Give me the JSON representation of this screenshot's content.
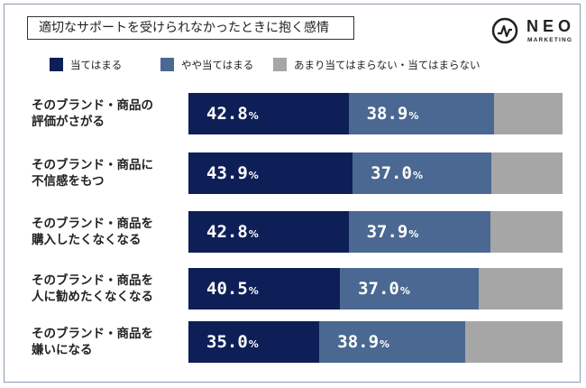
{
  "header": {
    "title": "適切なサポートを受けられなかったときに抱く感情"
  },
  "logo": {
    "wordmark": "NEO",
    "subtext": "MARKETING",
    "icon": "pulse-circle-icon"
  },
  "colors": {
    "series": [
      "#0e1f57",
      "#4a6891",
      "#a6a6a6"
    ]
  },
  "chart_data": {
    "type": "bar",
    "orientation": "horizontal",
    "stacked": true,
    "percent_stacked": true,
    "title": "適切なサポートを受けられなかったときに抱く感情",
    "legend_position": "top",
    "categories": [
      [
        "そのブランド・商品の",
        "評価がさがる"
      ],
      [
        "そのブランド・商品に",
        "不信感をもつ"
      ],
      [
        "そのブランド・商品を",
        "購入したくなくなる"
      ],
      [
        "そのブランド・商品を",
        "人に勧めたくなくなる"
      ],
      [
        "そのブランド・商品を",
        "嫌いになる"
      ]
    ],
    "series": [
      {
        "name": "当てはまる",
        "values": [
          42.8,
          43.9,
          42.8,
          40.5,
          35.0
        ]
      },
      {
        "name": "やや当てはまる",
        "values": [
          38.9,
          37.0,
          37.9,
          37.0,
          38.9
        ]
      },
      {
        "name": "あまり当てはまらない・当てはまらない",
        "values": [
          18.3,
          19.1,
          19.3,
          22.5,
          26.1
        ]
      }
    ],
    "data_labels": [
      [
        "42.8",
        "38.9"
      ],
      [
        "43.9",
        "37.0"
      ],
      [
        "42.8",
        "37.9"
      ],
      [
        "40.5",
        "37.0"
      ],
      [
        "35.0",
        "38.9"
      ]
    ],
    "unit": "%",
    "xlim": [
      0,
      100
    ]
  }
}
